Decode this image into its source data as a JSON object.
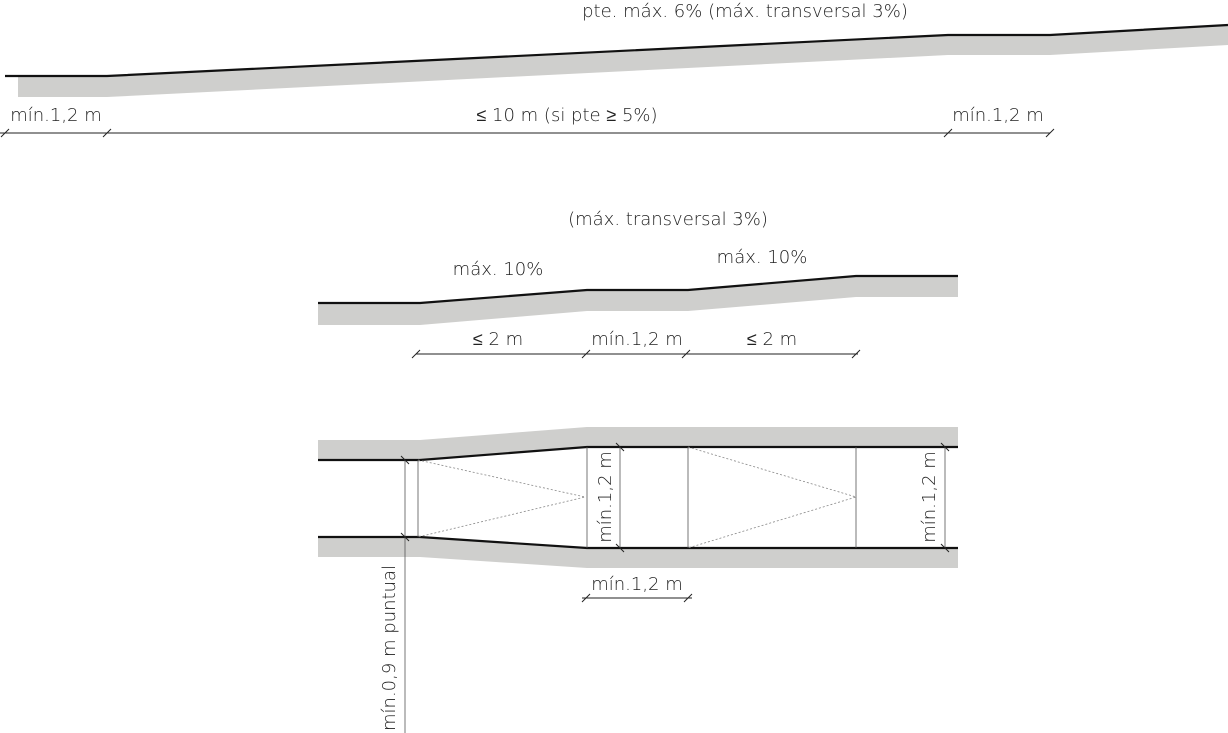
{
  "profile_1": {
    "label": "pte. máx. 6% (máx. transversal 3%)",
    "dimensions": [
      "mín.1,2 m",
      "≤ 10 m (si pte ≥ 5%)",
      "mín.1,2 m"
    ]
  },
  "profile_2": {
    "label": "(máx. transversal 3%)",
    "slopes": [
      "máx. 10%",
      "máx. 10%"
    ],
    "dimensions": [
      "≤ 2 m",
      "mín.1,2 m",
      "≤ 2 m"
    ]
  },
  "plan": {
    "widths": [
      "mín.1,2 m",
      "mín.1,2 m"
    ],
    "landing_length": "mín.1,2 m",
    "narrowing": "mín.0,9 m puntual"
  }
}
